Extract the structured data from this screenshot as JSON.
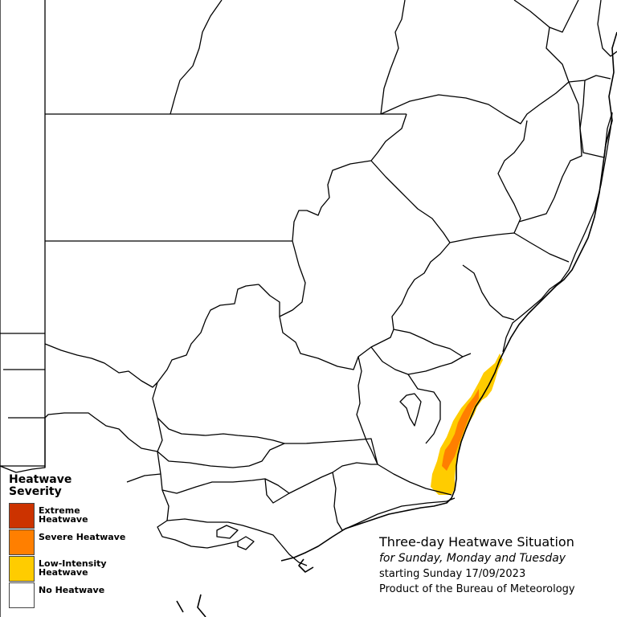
{
  "legend": {
    "title": "Heatwave Severity",
    "items": [
      {
        "label": "Extreme Heatwave",
        "color": "#cc3300"
      },
      {
        "label": "Severe Heatwave",
        "color": "#ff7f00"
      },
      {
        "label": "Low-Intensity Heatwave",
        "color": "#ffcc00"
      },
      {
        "label": "No Heatwave",
        "color": "#ffffff"
      }
    ]
  },
  "caption": {
    "title": "Three-day Heatwave Situation",
    "subtitle": "for Sunday, Monday and Tuesday",
    "date_line": "starting Sunday 17/09/2023",
    "credit": "Product of the Bureau of Meteorology"
  },
  "map": {
    "background_color": "#ffffff",
    "border_color": "#000000",
    "heatwave_zones": [
      {
        "severity": "Low-Intensity Heatwave",
        "location": "NSW South Coast"
      },
      {
        "severity": "Severe Heatwave",
        "location": "NSW South Coast"
      }
    ]
  }
}
